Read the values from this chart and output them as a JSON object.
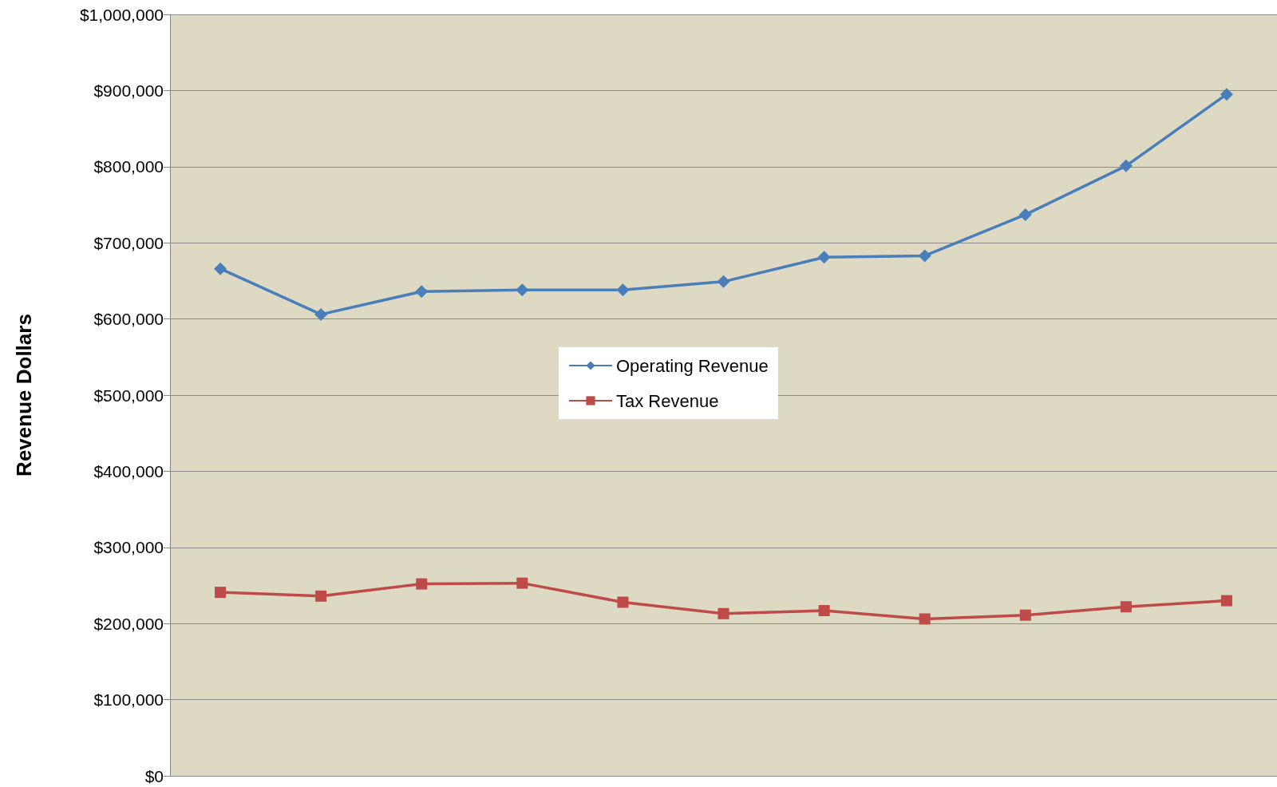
{
  "chart_data": {
    "type": "line",
    "ylabel": "Revenue Dollars",
    "categories": [
      null,
      null,
      null,
      null,
      null,
      null,
      null,
      null,
      null,
      null,
      null
    ],
    "series": [
      {
        "name": "Operating Revenue",
        "color": "#4a7ebb",
        "marker": "diamond",
        "values": [
          666000,
          606000,
          636000,
          638000,
          638000,
          649000,
          681000,
          683000,
          737000,
          801000,
          895000
        ]
      },
      {
        "name": "Tax Revenue",
        "color": "#be4b48",
        "marker": "square",
        "values": [
          241000,
          236000,
          252000,
          253000,
          228000,
          213000,
          217000,
          206000,
          211000,
          222000,
          230000
        ]
      }
    ],
    "ylim": [
      0,
      1000000
    ],
    "yticks": [
      {
        "value": 0,
        "label": "$0"
      },
      {
        "value": 100000,
        "label": "$100,000"
      },
      {
        "value": 200000,
        "label": "$200,000"
      },
      {
        "value": 300000,
        "label": "$300,000"
      },
      {
        "value": 400000,
        "label": "$400,000"
      },
      {
        "value": 500000,
        "label": "$500,000"
      },
      {
        "value": 600000,
        "label": "$600,000"
      },
      {
        "value": 700000,
        "label": "$700,000"
      },
      {
        "value": 800000,
        "label": "$800,000"
      },
      {
        "value": 900000,
        "label": "$900,000"
      },
      {
        "value": 1000000,
        "label": "$1,000,000"
      }
    ],
    "grid": "y",
    "legend": "center",
    "tick_labels": "y"
  }
}
